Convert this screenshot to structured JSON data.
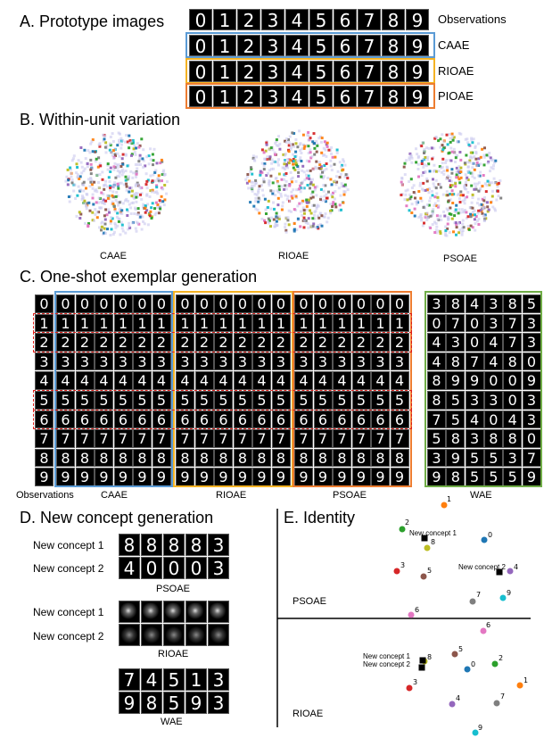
{
  "colors": {
    "caae": "#5b9bd5",
    "rioae": "#f4b223",
    "psoae": "#ed7d31",
    "wae": "#70ad47",
    "red": "#e0201b"
  },
  "sectionA": {
    "title": "A. Prototype images",
    "rows": [
      {
        "label": "Observations",
        "digits": [
          "0",
          "1",
          "2",
          "3",
          "4",
          "5",
          "6",
          "7",
          "8",
          "9"
        ]
      },
      {
        "label": "CAAE",
        "digits": [
          "0",
          "1",
          "2",
          "3",
          "4",
          "5",
          "6",
          "7",
          "8",
          "9"
        ]
      },
      {
        "label": "RIOAE",
        "digits": [
          "0",
          "1",
          "2",
          "3",
          "4",
          "5",
          "6",
          "7",
          "8",
          "9"
        ]
      },
      {
        "label": "PIOAE",
        "digits": [
          "0",
          "1",
          "2",
          "3",
          "4",
          "5",
          "6",
          "7",
          "8",
          "9"
        ]
      }
    ]
  },
  "sectionB": {
    "title": "B. Within-unit variation",
    "labels": [
      "CAAE",
      "RIOAE",
      "PSOAE"
    ]
  },
  "sectionC": {
    "title": "C. One-shot exemplar generation",
    "labels": [
      "Observations",
      "CAAE",
      "RIOAE",
      "PSOAE",
      "WAE"
    ],
    "rows": [
      "0",
      "1",
      "2",
      "3",
      "4",
      "5",
      "6",
      "7",
      "8",
      "9"
    ],
    "wae_rows": [
      [
        "3",
        "8",
        "4",
        "3",
        "8",
        "5"
      ],
      [
        "0",
        "7",
        "0",
        "3",
        "7",
        "3"
      ],
      [
        "4",
        "3",
        "0",
        "4",
        "7",
        "3"
      ],
      [
        "4",
        "8",
        "7",
        "4",
        "8",
        "0"
      ],
      [
        "8",
        "9",
        "9",
        "0",
        "0",
        "9"
      ],
      [
        "8",
        "5",
        "3",
        "3",
        "0",
        "3"
      ],
      [
        "7",
        "5",
        "4",
        "0",
        "4",
        "3"
      ],
      [
        "5",
        "8",
        "3",
        "8",
        "8",
        "0"
      ],
      [
        "3",
        "9",
        "5",
        "5",
        "3",
        "7"
      ],
      [
        "9",
        "8",
        "5",
        "5",
        "5",
        "9"
      ]
    ]
  },
  "sectionD": {
    "title": "D. New concept generation",
    "concept1": "New concept 1",
    "concept2": "New concept 2",
    "psoae": {
      "label": "PSOAE",
      "row1": [
        "8",
        "8",
        "8",
        "8",
        "3"
      ],
      "row2": [
        "4",
        "0",
        "0",
        "0",
        "3"
      ]
    },
    "rioae": {
      "label": "RIOAE"
    },
    "wae": {
      "label": "WAE",
      "row1": [
        "7",
        "4",
        "5",
        "1",
        "3"
      ],
      "row2": [
        "9",
        "8",
        "5",
        "9",
        "3"
      ]
    }
  },
  "sectionE": {
    "title": "E. Identity",
    "psoae_label": "PSOAE",
    "rioae_label": "RIOAE",
    "psoae_points": [
      {
        "t": "1",
        "c": "#ff7f0e"
      },
      {
        "t": "2",
        "c": "#2ca02c"
      },
      {
        "t": "8",
        "c": "#bcbd22"
      },
      {
        "t": "0",
        "c": "#1f77b4"
      },
      {
        "t": "3",
        "c": "#d62728"
      },
      {
        "t": "5",
        "c": "#8c564b"
      },
      {
        "t": "4",
        "c": "#9467bd"
      },
      {
        "t": "7",
        "c": "#7f7f7f"
      },
      {
        "t": "9",
        "c": "#17becf"
      },
      {
        "t": "6",
        "c": "#e377c2"
      }
    ],
    "rioae_points": [
      {
        "t": "6",
        "c": "#e377c2"
      },
      {
        "t": "5",
        "c": "#8c564b"
      },
      {
        "t": "8",
        "c": "#bcbd22"
      },
      {
        "t": "2",
        "c": "#2ca02c"
      },
      {
        "t": "0",
        "c": "#1f77b4"
      },
      {
        "t": "1",
        "c": "#ff7f0e"
      },
      {
        "t": "3",
        "c": "#d62728"
      },
      {
        "t": "4",
        "c": "#9467bd"
      },
      {
        "t": "7",
        "c": "#7f7f7f"
      },
      {
        "t": "9",
        "c": "#17becf"
      }
    ],
    "psoae_concepts": [
      "New concept 1",
      "New concept 2"
    ],
    "rioae_concepts": [
      "New concept 1",
      "New concept 2"
    ]
  }
}
